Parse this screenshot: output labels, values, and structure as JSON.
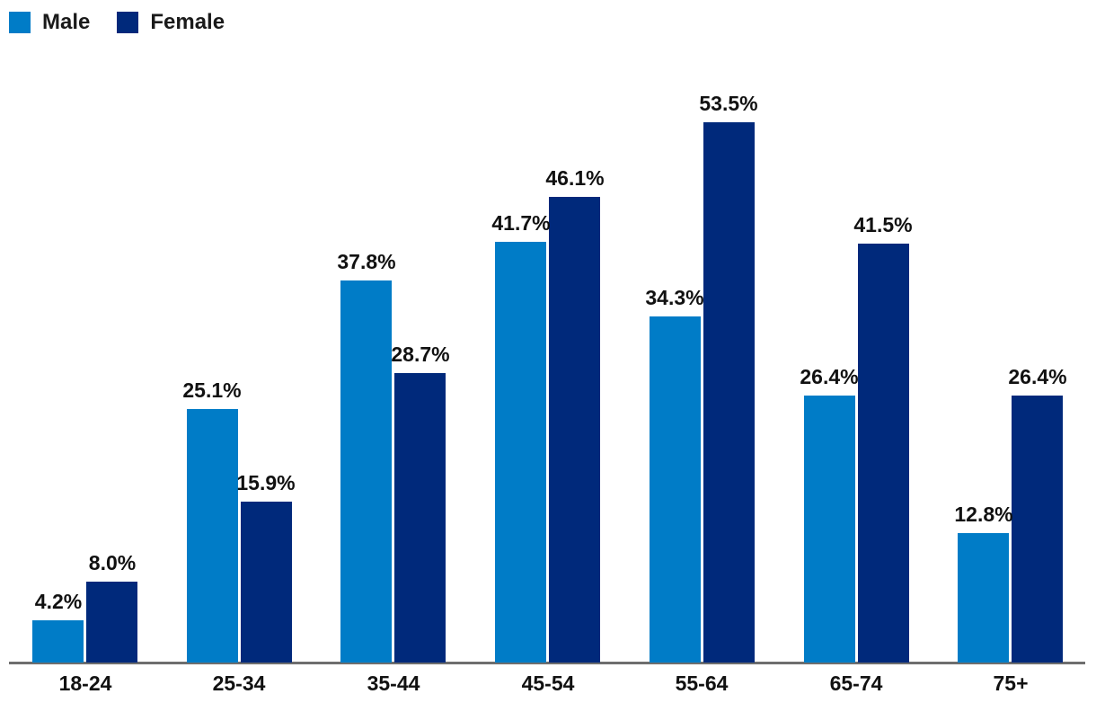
{
  "chart_data": {
    "type": "bar",
    "categories": [
      "18-24",
      "25-34",
      "35-44",
      "45-54",
      "55-64",
      "65-74",
      "75+"
    ],
    "series": [
      {
        "name": "Male",
        "color": "#007CC7",
        "values": [
          4.2,
          25.1,
          37.8,
          41.7,
          34.3,
          26.4,
          12.8
        ],
        "labels": [
          "4.2%",
          "25.1%",
          "37.8%",
          "41.7%",
          "34.3%",
          "26.4%",
          "12.8%"
        ]
      },
      {
        "name": "Female",
        "color": "#00297B",
        "values": [
          8.0,
          15.9,
          28.7,
          46.1,
          53.5,
          41.5,
          26.4
        ],
        "labels": [
          "8.0%",
          "15.9%",
          "28.7%",
          "46.1%",
          "53.5%",
          "41.5%",
          "26.4%"
        ]
      }
    ],
    "title": "",
    "xlabel": "",
    "ylabel": "",
    "ylim": [
      0,
      60
    ],
    "grid": false,
    "legend_position": "top-left",
    "value_suffix": "%",
    "axis_line_color": "#6e6e6e",
    "label_color": "#111111",
    "background_color": "#ffffff"
  }
}
